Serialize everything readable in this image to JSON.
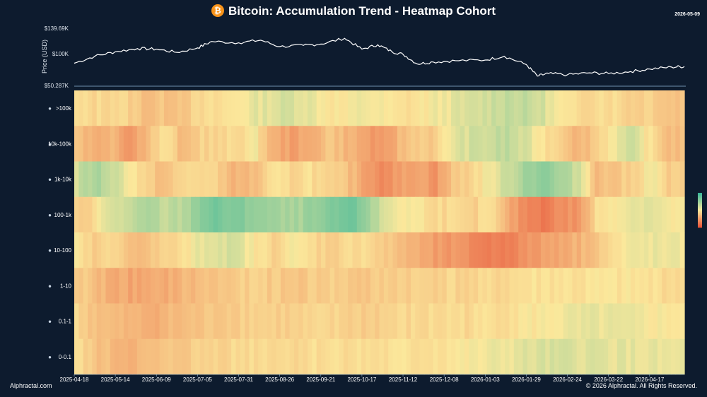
{
  "title": "Bitcoin: Accumulation Trend - Heatmap Cohort",
  "date_tag": "2026-05-09",
  "footer_left": "Alphractal.com",
  "footer_right": "© 2026 Alphractal. All Rights Reserved.",
  "colors": {
    "background": "#0d1b2e",
    "price_line": "#ffffff",
    "scale_low": "#e8553a",
    "scale_mid": "#fbe89b",
    "scale_high": "#3cb89a"
  },
  "chart_data": [
    {
      "type": "line",
      "ylabel": "Price (USD)",
      "yticks": [
        "$139.69K",
        "$100K",
        "$50.287K"
      ],
      "ylim": [
        50287,
        139690
      ],
      "points": [
        [
          "2025-04-18",
          85000
        ],
        [
          "2025-05-01",
          96000
        ],
        [
          "2025-05-14",
          103000
        ],
        [
          "2025-05-28",
          108000
        ],
        [
          "2025-06-09",
          107000
        ],
        [
          "2025-06-22",
          102000
        ],
        [
          "2025-07-05",
          109000
        ],
        [
          "2025-07-14",
          119000
        ],
        [
          "2025-07-31",
          117000
        ],
        [
          "2025-08-14",
          121000
        ],
        [
          "2025-08-26",
          111000
        ],
        [
          "2025-09-10",
          113000
        ],
        [
          "2025-09-21",
          115000
        ],
        [
          "2025-10-06",
          124000
        ],
        [
          "2025-10-17",
          107000
        ],
        [
          "2025-10-27",
          114000
        ],
        [
          "2025-11-05",
          103000
        ],
        [
          "2025-11-12",
          99000
        ],
        [
          "2025-11-21",
          84000
        ],
        [
          "2025-12-01",
          87000
        ],
        [
          "2025-12-15",
          89000
        ],
        [
          "2026-01-03",
          90000
        ],
        [
          "2026-01-15",
          96000
        ],
        [
          "2026-01-29",
          83000
        ],
        [
          "2026-02-05",
          65000
        ],
        [
          "2026-02-12",
          69000
        ],
        [
          "2026-02-24",
          67000
        ],
        [
          "2026-03-10",
          70000
        ],
        [
          "2026-03-22",
          69000
        ],
        [
          "2026-04-05",
          72000
        ],
        [
          "2026-04-17",
          76000
        ],
        [
          "2026-05-01",
          79000
        ],
        [
          "2026-05-09",
          80000
        ]
      ]
    },
    {
      "type": "heatmap",
      "cohorts": [
        ">100k",
        "10k-100k",
        "1k-10k",
        "100-1k",
        "10-100",
        "1-10",
        "0.1-1",
        "0-0.1"
      ],
      "cohort_icons": [
        "whale-icon",
        "humpback-icon",
        "shark-icon",
        "fish-icon",
        "octopus-icon",
        "crab-icon",
        "crab-small-icon",
        "shrimp-icon"
      ],
      "x_ticks": [
        "2025-04-18",
        "2025-05-14",
        "2025-06-09",
        "2025-07-05",
        "2025-07-31",
        "2025-08-26",
        "2025-09-21",
        "2025-10-17",
        "2025-11-12",
        "2025-12-08",
        "2026-01-03",
        "2026-01-29",
        "2026-02-24",
        "2026-03-22",
        "2026-04-17"
      ],
      "value_scale": [
        0,
        1
      ],
      "values_note_scale": "0 = distribution (orange), 0.5 = neutral (yellow), 1 = accumulation (teal)",
      "rows": [
        [
          0.45,
          0.44,
          0.46,
          0.42,
          0.36,
          0.38,
          0.4,
          0.44,
          0.46,
          0.5,
          0.55,
          0.58,
          0.6,
          0.56,
          0.5,
          0.48,
          0.54,
          0.5,
          0.46,
          0.48,
          0.52,
          0.55,
          0.58,
          0.62,
          0.66,
          0.64,
          0.6,
          0.48,
          0.44,
          0.48,
          0.46,
          0.42,
          0.44,
          0.38
        ],
        [
          0.4,
          0.3,
          0.36,
          0.22,
          0.38,
          0.48,
          0.32,
          0.44,
          0.42,
          0.46,
          0.5,
          0.3,
          0.26,
          0.28,
          0.4,
          0.34,
          0.28,
          0.2,
          0.34,
          0.42,
          0.4,
          0.56,
          0.6,
          0.62,
          0.66,
          0.58,
          0.48,
          0.44,
          0.32,
          0.42,
          0.54,
          0.6,
          0.46,
          0.36
        ],
        [
          0.6,
          0.72,
          0.64,
          0.52,
          0.4,
          0.36,
          0.44,
          0.46,
          0.4,
          0.32,
          0.36,
          0.46,
          0.44,
          0.48,
          0.4,
          0.38,
          0.28,
          0.2,
          0.24,
          0.3,
          0.22,
          0.38,
          0.44,
          0.52,
          0.62,
          0.74,
          0.8,
          0.7,
          0.62,
          0.36,
          0.38,
          0.42,
          0.54,
          0.4
        ],
        [
          0.4,
          0.46,
          0.6,
          0.62,
          0.7,
          0.64,
          0.68,
          0.82,
          0.84,
          0.8,
          0.78,
          0.72,
          0.7,
          0.74,
          0.78,
          0.86,
          0.8,
          0.6,
          0.52,
          0.5,
          0.46,
          0.44,
          0.4,
          0.48,
          0.3,
          0.18,
          0.14,
          0.2,
          0.22,
          0.46,
          0.52,
          0.56,
          0.58,
          0.5
        ],
        [
          0.48,
          0.4,
          0.44,
          0.36,
          0.38,
          0.42,
          0.46,
          0.56,
          0.6,
          0.58,
          0.48,
          0.44,
          0.5,
          0.46,
          0.42,
          0.44,
          0.48,
          0.4,
          0.36,
          0.3,
          0.24,
          0.22,
          0.18,
          0.14,
          0.16,
          0.2,
          0.26,
          0.3,
          0.32,
          0.4,
          0.46,
          0.52,
          0.54,
          0.52
        ],
        [
          0.42,
          0.36,
          0.3,
          0.28,
          0.27,
          0.3,
          0.33,
          0.36,
          0.38,
          0.4,
          0.42,
          0.4,
          0.38,
          0.4,
          0.42,
          0.4,
          0.38,
          0.4,
          0.42,
          0.42,
          0.43,
          0.44,
          0.42,
          0.44,
          0.45,
          0.47,
          0.48,
          0.48,
          0.47,
          0.48,
          0.48,
          0.48,
          0.47,
          0.46
        ],
        [
          0.44,
          0.38,
          0.34,
          0.32,
          0.31,
          0.33,
          0.35,
          0.37,
          0.4,
          0.42,
          0.43,
          0.42,
          0.41,
          0.42,
          0.43,
          0.42,
          0.41,
          0.42,
          0.44,
          0.44,
          0.45,
          0.46,
          0.45,
          0.47,
          0.48,
          0.49,
          0.5,
          0.52,
          0.53,
          0.54,
          0.53,
          0.52,
          0.51,
          0.5
        ],
        [
          0.46,
          0.38,
          0.34,
          0.33,
          0.34,
          0.37,
          0.4,
          0.42,
          0.44,
          0.45,
          0.46,
          0.46,
          0.45,
          0.46,
          0.47,
          0.47,
          0.46,
          0.46,
          0.47,
          0.47,
          0.48,
          0.49,
          0.5,
          0.52,
          0.54,
          0.56,
          0.58,
          0.58,
          0.58,
          0.57,
          0.56,
          0.55,
          0.54,
          0.53
        ]
      ]
    }
  ]
}
